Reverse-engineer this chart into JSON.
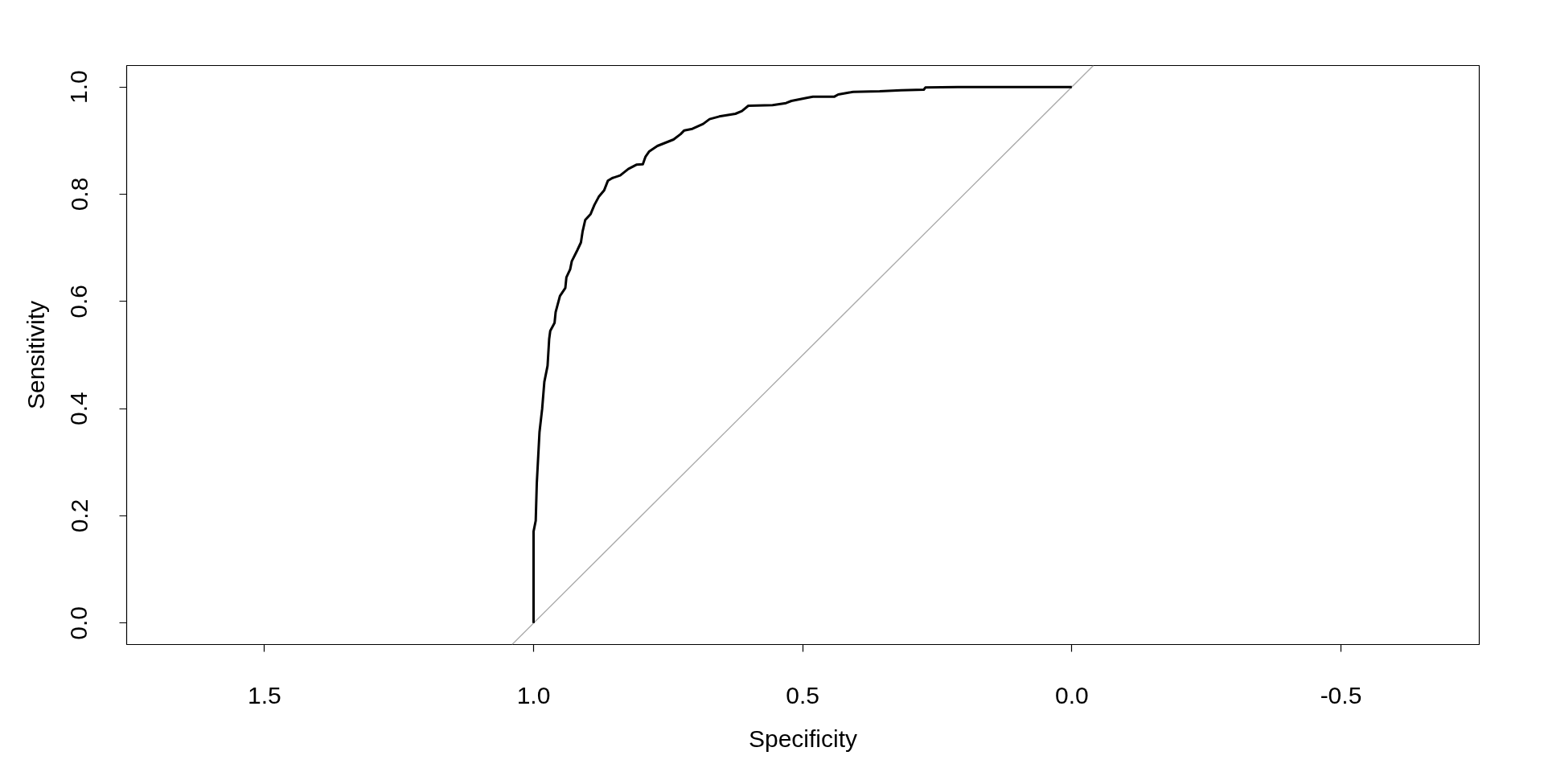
{
  "chart_data": {
    "type": "line",
    "xlabel": "Specificity",
    "ylabel": "Sensitivity",
    "xlim": [
      1.756,
      -0.757
    ],
    "ylim": [
      -0.04,
      1.04
    ],
    "xticks": [
      1.5,
      {
        "value": 1,
        "label": "1.0"
      },
      0.5,
      {
        "value": 0,
        "label": "0.0"
      },
      {
        "value": -0.5,
        "label": "-0.5"
      }
    ],
    "yticks": [
      {
        "value": 0,
        "label": "0.0"
      },
      0.2,
      0.4,
      0.6,
      0.8,
      {
        "value": 1,
        "label": "1.0"
      }
    ],
    "series": [
      {
        "color": "#000000",
        "x": [
          1.0,
          1.0,
          0.996,
          0.994,
          0.989,
          0.984,
          0.98,
          0.974,
          0.971,
          0.969,
          0.961,
          0.959,
          0.951,
          0.941,
          0.939,
          0.932,
          0.929,
          0.919,
          0.912,
          0.909,
          0.904,
          0.894,
          0.887,
          0.879,
          0.869,
          0.862,
          0.854,
          0.839,
          0.824,
          0.809,
          0.797,
          0.792,
          0.785,
          0.77,
          0.755,
          0.74,
          0.727,
          0.72,
          0.705,
          0.685,
          0.673,
          0.655,
          0.625,
          0.613,
          0.601,
          0.556,
          0.531,
          0.521,
          0.491,
          0.481,
          0.441,
          0.434,
          0.411,
          0.406,
          0.357,
          0.317,
          0.275,
          0.272,
          0.212,
          0.0
        ],
        "values": [
          0.0,
          0.171,
          0.191,
          0.261,
          0.356,
          0.4,
          0.45,
          0.48,
          0.53,
          0.545,
          0.56,
          0.58,
          0.61,
          0.625,
          0.645,
          0.66,
          0.675,
          0.695,
          0.71,
          0.73,
          0.752,
          0.763,
          0.78,
          0.795,
          0.807,
          0.825,
          0.83,
          0.835,
          0.847,
          0.855,
          0.856,
          0.87,
          0.88,
          0.89,
          0.896,
          0.902,
          0.912,
          0.919,
          0.922,
          0.931,
          0.94,
          0.945,
          0.95,
          0.955,
          0.965,
          0.966,
          0.97,
          0.974,
          0.98,
          0.982,
          0.982,
          0.986,
          0.99,
          0.991,
          0.992,
          0.994,
          0.995,
          0.999,
          1.0,
          1.0
        ]
      },
      {
        "color": "#a9a9a9",
        "x": [
          1.04,
          -0.04
        ],
        "values": [
          -0.04,
          1.04
        ]
      }
    ]
  }
}
